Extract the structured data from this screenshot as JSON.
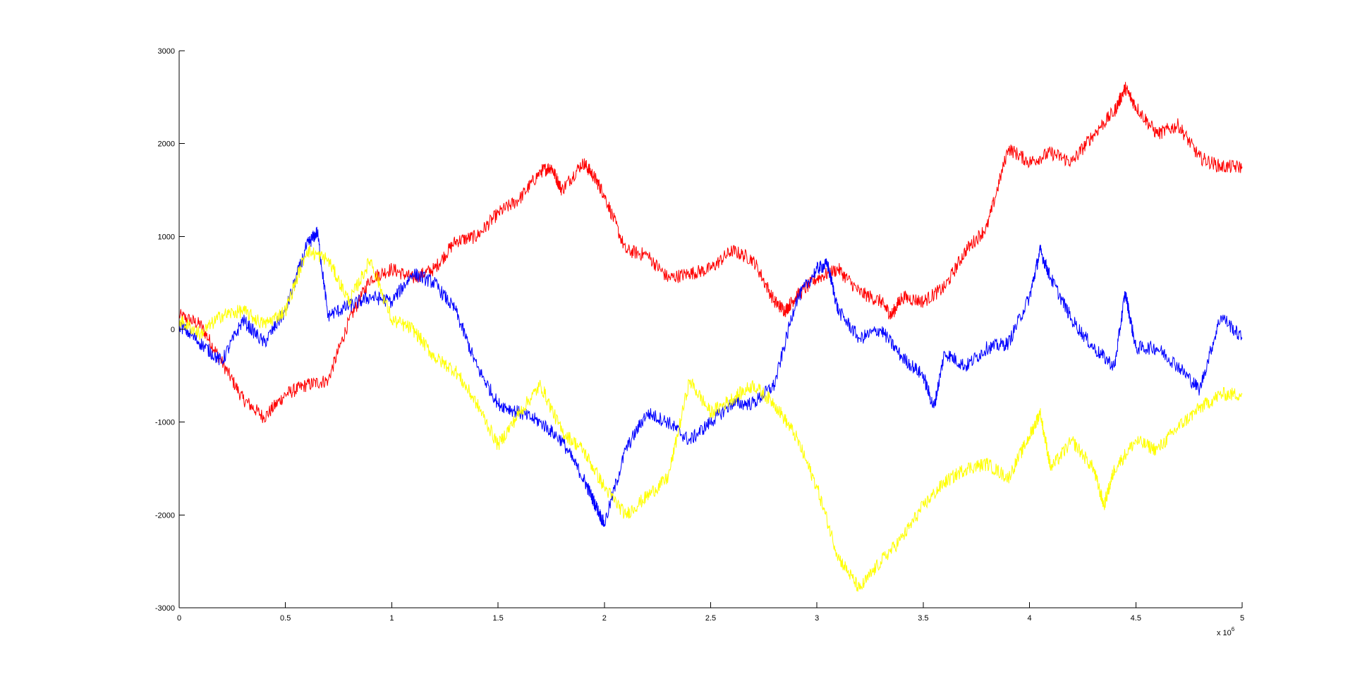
{
  "chart_data": {
    "type": "line",
    "title": "",
    "xlabel": "",
    "ylabel": "",
    "x_multiplier_label": "x 10",
    "x_multiplier_exponent": "6",
    "xlim": [
      0,
      5
    ],
    "ylim": [
      -3000,
      3000
    ],
    "grid": false,
    "legend": "none",
    "xticks": [
      0,
      0.5,
      1,
      1.5,
      2,
      2.5,
      3,
      3.5,
      4,
      4.5,
      5
    ],
    "xtick_labels": [
      "0",
      "0.5",
      "1",
      "1.5",
      "2",
      "2.5",
      "3",
      "3.5",
      "4",
      "4.5",
      "5"
    ],
    "yticks": [
      -3000,
      -2000,
      -1000,
      0,
      1000,
      2000,
      3000
    ],
    "ytick_labels": [
      "-3000",
      "-2000",
      "-1000",
      "0",
      "1000",
      "2000",
      "3000"
    ],
    "series": [
      {
        "name": "red",
        "color": "#ff0000",
        "x": [
          0,
          0.1,
          0.2,
          0.3,
          0.4,
          0.5,
          0.6,
          0.7,
          0.8,
          0.9,
          1.0,
          1.1,
          1.2,
          1.3,
          1.4,
          1.5,
          1.6,
          1.7,
          1.75,
          1.8,
          1.9,
          1.95,
          2.0,
          2.1,
          2.2,
          2.3,
          2.4,
          2.5,
          2.6,
          2.7,
          2.8,
          2.85,
          2.9,
          3.0,
          3.1,
          3.2,
          3.3,
          3.35,
          3.4,
          3.5,
          3.6,
          3.7,
          3.8,
          3.9,
          4.0,
          4.1,
          4.2,
          4.3,
          4.4,
          4.45,
          4.5,
          4.6,
          4.7,
          4.8,
          4.9,
          5.0
        ],
        "y": [
          150,
          50,
          -350,
          -750,
          -950,
          -700,
          -600,
          -550,
          100,
          550,
          650,
          550,
          650,
          950,
          1000,
          1250,
          1400,
          1700,
          1750,
          1500,
          1800,
          1650,
          1450,
          850,
          800,
          550,
          600,
          650,
          850,
          750,
          300,
          200,
          350,
          550,
          650,
          400,
          300,
          150,
          350,
          300,
          450,
          850,
          1100,
          1950,
          1800,
          1900,
          1800,
          2100,
          2350,
          2600,
          2400,
          2100,
          2200,
          1850,
          1750,
          1750
        ]
      },
      {
        "name": "blue",
        "color": "#0000ff",
        "x": [
          0,
          0.1,
          0.2,
          0.3,
          0.4,
          0.5,
          0.6,
          0.65,
          0.7,
          0.8,
          0.9,
          1.0,
          1.1,
          1.2,
          1.3,
          1.4,
          1.5,
          1.6,
          1.7,
          1.8,
          1.9,
          1.95,
          2.0,
          2.1,
          2.2,
          2.3,
          2.4,
          2.5,
          2.6,
          2.7,
          2.8,
          2.9,
          3.0,
          3.05,
          3.1,
          3.2,
          3.3,
          3.4,
          3.5,
          3.55,
          3.6,
          3.7,
          3.8,
          3.9,
          4.0,
          4.05,
          4.1,
          4.2,
          4.3,
          4.4,
          4.45,
          4.5,
          4.6,
          4.7,
          4.8,
          4.9,
          5.0
        ],
        "y": [
          50,
          -150,
          -350,
          100,
          -150,
          200,
          900,
          1050,
          150,
          250,
          350,
          300,
          600,
          500,
          200,
          -400,
          -800,
          -900,
          -1000,
          -1200,
          -1600,
          -1850,
          -2100,
          -1300,
          -900,
          -1000,
          -1200,
          -1000,
          -800,
          -800,
          -600,
          300,
          650,
          700,
          200,
          -100,
          0,
          -300,
          -500,
          -850,
          -250,
          -400,
          -200,
          -150,
          350,
          850,
          550,
          100,
          -200,
          -400,
          400,
          -200,
          -200,
          -400,
          -650,
          150,
          -100
        ]
      },
      {
        "name": "yellow",
        "color": "#ffff00",
        "x": [
          0,
          0.1,
          0.2,
          0.3,
          0.4,
          0.5,
          0.6,
          0.7,
          0.8,
          0.9,
          1.0,
          1.1,
          1.2,
          1.3,
          1.4,
          1.5,
          1.6,
          1.7,
          1.8,
          1.9,
          2.0,
          2.1,
          2.2,
          2.3,
          2.4,
          2.5,
          2.6,
          2.7,
          2.8,
          2.9,
          3.0,
          3.1,
          3.2,
          3.3,
          3.4,
          3.5,
          3.6,
          3.7,
          3.8,
          3.9,
          4.0,
          4.05,
          4.1,
          4.2,
          4.3,
          4.35,
          4.4,
          4.5,
          4.6,
          4.7,
          4.8,
          4.9,
          5.0
        ],
        "y": [
          100,
          -50,
          150,
          200,
          50,
          200,
          850,
          750,
          300,
          750,
          100,
          0,
          -300,
          -450,
          -800,
          -1250,
          -900,
          -600,
          -1100,
          -1300,
          -1700,
          -2000,
          -1800,
          -1600,
          -550,
          -900,
          -750,
          -600,
          -800,
          -1150,
          -1700,
          -2450,
          -2800,
          -2500,
          -2250,
          -1900,
          -1650,
          -1500,
          -1450,
          -1600,
          -1150,
          -900,
          -1500,
          -1200,
          -1500,
          -1900,
          -1500,
          -1200,
          -1300,
          -1050,
          -850,
          -700,
          -700
        ]
      }
    ]
  }
}
